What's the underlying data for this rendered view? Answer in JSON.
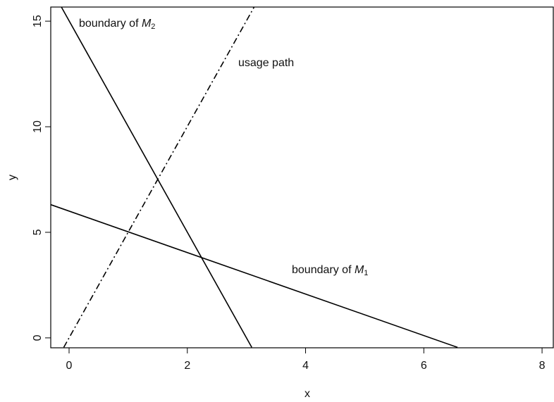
{
  "chart_data": {
    "type": "line",
    "xlabel": "x",
    "ylabel": "y",
    "xlim": [
      -0.31,
      8.19
    ],
    "ylim": [
      -0.47,
      15.67
    ],
    "xticks": [
      0,
      2,
      4,
      6,
      8
    ],
    "yticks": [
      0,
      5,
      10,
      15
    ],
    "grid": false,
    "series": [
      {
        "color": "#000000",
        "style": "solid",
        "x": [
          -0.13,
          3.09
        ],
        "values": [
          15.67,
          -0.45
        ]
      },
      {
        "color": "#000000",
        "style": "solid",
        "x": [
          -0.31,
          6.57
        ],
        "values": [
          6.31,
          -0.45
        ]
      },
      {
        "color": "#000000",
        "style": "dashdot",
        "x": [
          -0.09,
          3.13
        ],
        "values": [
          -0.45,
          15.67
        ]
      }
    ],
    "annotations": [
      {
        "text": "boundary of ",
        "symbol": "M",
        "subscript": "2"
      },
      {
        "text": "usage path"
      },
      {
        "text": "boundary of ",
        "symbol": "M",
        "subscript": "1"
      }
    ]
  }
}
